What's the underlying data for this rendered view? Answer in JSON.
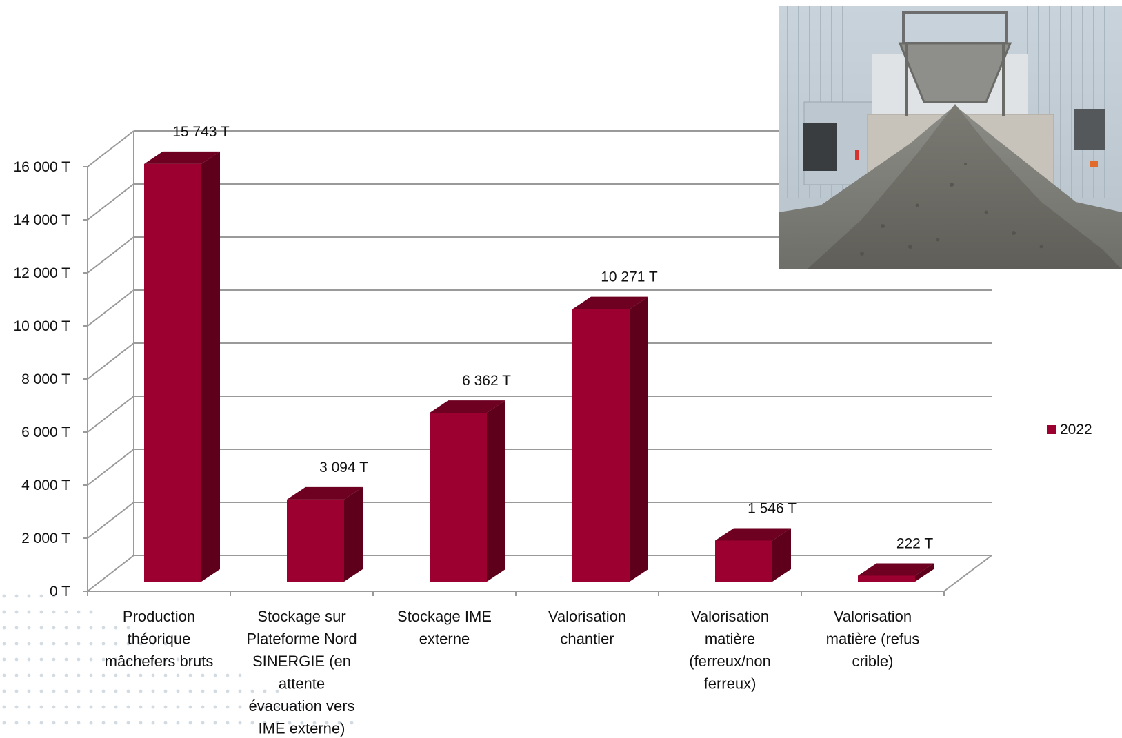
{
  "chart_data": {
    "type": "bar",
    "style": "3d-column",
    "categories": [
      [
        "Production",
        "théorique",
        "mâchefers bruts"
      ],
      [
        "Stockage sur",
        "Plateforme Nord",
        "SINERGIE (en",
        "attente",
        "évacuation vers",
        "IME externe)"
      ],
      [
        "Stockage IME",
        "externe"
      ],
      [
        "Valorisation",
        "chantier"
      ],
      [
        "Valorisation",
        "matière",
        "(ferreux/non",
        "ferreux)"
      ],
      [
        "Valorisation",
        "matière (refus",
        "crible)"
      ]
    ],
    "series": [
      {
        "name": "2022",
        "values": [
          15743,
          3094,
          6362,
          10271,
          1546,
          222
        ],
        "labels": [
          "15 743 T",
          "3 094 T",
          "6 362 T",
          "10 271 T",
          "1 546 T",
          "222 T"
        ]
      }
    ],
    "yticks": [
      "0 T",
      "2 000 T",
      "4 000 T",
      "6 000 T",
      "8 000 T",
      "10 000 T",
      "12 000 T",
      "14 000 T",
      "16 000 T"
    ],
    "ylim": [
      0,
      16000
    ],
    "grid": true,
    "legend_position": "right",
    "colors": {
      "bar_front": "#9b0031",
      "bar_top": "#6e0022",
      "bar_side": "#5e001c",
      "grid": "#9a9a9a"
    }
  },
  "photo": {
    "subject": "bottom-ash-pile-at-industrial-site-photo"
  }
}
